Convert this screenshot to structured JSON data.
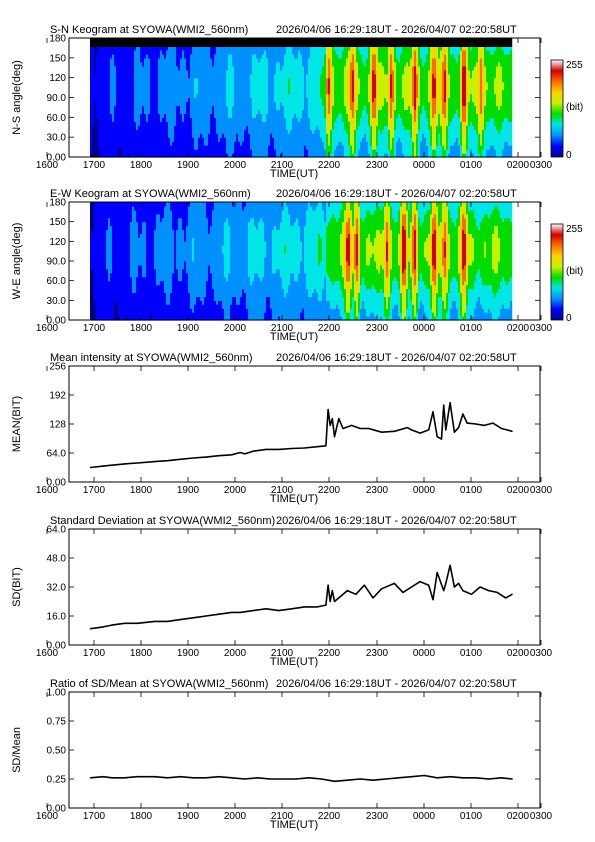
{
  "title_range": "2026/04/06 16:29:18UT - 2026/04/07 02:20:58UT",
  "time_ticks": [
    "1600",
    "1700",
    "1800",
    "1900",
    "2000",
    "2100",
    "2200",
    "2300",
    "0000",
    "0100",
    "0200",
    "0300"
  ],
  "time_label": "TIME(UT)",
  "colorbar": {
    "max_label": "255",
    "unit_label": "(bit)",
    "min_label": "0"
  },
  "keogram_colors": [
    "#00008f",
    "#0000ff",
    "#0090ff",
    "#00e6e6",
    "#00dc00",
    "#c8f000",
    "#ffd000",
    "#ff6a00",
    "#d40000",
    "#ffffff"
  ],
  "chart_data": [
    {
      "type": "heatmap",
      "title": "S-N Keogram at SYOWA(WMI2_560nm)",
      "ylabel": "N-S angle(deg)",
      "yticks": [
        "0.00",
        "30.0",
        "60.0",
        "90.0",
        "120",
        "150",
        "180"
      ],
      "ylim": [
        0,
        180
      ],
      "xlim_hours": [
        16.0,
        27.0
      ],
      "data_start_hours": 16.49,
      "data_end_hours": 26.35,
      "bright_times": [
        22.05,
        22.6,
        23.1,
        23.5,
        0.05,
        0.5,
        0.75,
        1.2,
        1.6
      ],
      "colorbar_range": [
        0,
        255
      ]
    },
    {
      "type": "heatmap",
      "title": "E-W Keogram at SYOWA(WMI2_560nm)",
      "ylabel": "W-E angle(deg)",
      "yticks": [
        "0.00",
        "30.0",
        "60.0",
        "90.0",
        "120",
        "150",
        "180"
      ],
      "ylim": [
        0,
        180
      ],
      "xlim_hours": [
        16.0,
        27.0
      ],
      "data_start_hours": 16.49,
      "data_end_hours": 26.35,
      "bright_times": [
        22.5,
        22.7,
        23.4,
        23.8,
        0.05,
        0.5,
        0.75,
        1.2
      ],
      "colorbar_range": [
        0,
        255
      ]
    },
    {
      "type": "line",
      "title": "Mean intensity at SYOWA(WMI2_560nm)",
      "ylabel": "MEAN(BIT)",
      "yticks": [
        "0.00",
        "64.0",
        "128",
        "192",
        "256"
      ],
      "ylim": [
        0,
        256
      ],
      "xlim_hours": [
        16.0,
        27.0
      ],
      "series": [
        {
          "x_hours": [
            16.5,
            16.8,
            17.0,
            17.3,
            17.6,
            18.0,
            18.3,
            18.6,
            18.9,
            19.2,
            19.5,
            19.8,
            20.0,
            20.1,
            20.3,
            20.6,
            20.9,
            21.2,
            21.5,
            21.8,
            22.0,
            22.05,
            22.1,
            22.15,
            22.2,
            22.3,
            22.4,
            22.6,
            22.8,
            23.0,
            23.3,
            23.6,
            23.9,
            24.0,
            24.2,
            24.4,
            24.5,
            24.6,
            24.7,
            24.75,
            24.8,
            24.9,
            25.0,
            25.1,
            25.2,
            25.3,
            25.5,
            25.7,
            25.9,
            26.1,
            26.35
          ],
          "y": [
            32,
            35,
            37,
            40,
            42,
            45,
            47,
            50,
            53,
            55,
            58,
            60,
            65,
            62,
            68,
            72,
            72,
            74,
            75,
            78,
            80,
            160,
            125,
            140,
            100,
            140,
            118,
            125,
            118,
            118,
            110,
            112,
            120,
            115,
            108,
            115,
            155,
            100,
            95,
            170,
            115,
            175,
            110,
            120,
            150,
            130,
            128,
            125,
            130,
            118,
            112
          ]
        }
      ]
    },
    {
      "type": "line",
      "title": "Standard Deviation at SYOWA(WMI2_560nm)",
      "ylabel": "SD(BIT)",
      "yticks": [
        "0.00",
        "16.0",
        "32.0",
        "48.0",
        "64.0"
      ],
      "ylim": [
        0,
        64
      ],
      "xlim_hours": [
        16.0,
        27.0
      ],
      "series": [
        {
          "x_hours": [
            16.5,
            16.8,
            17.0,
            17.3,
            17.6,
            18.0,
            18.3,
            18.6,
            18.9,
            19.2,
            19.5,
            19.8,
            20.0,
            20.3,
            20.6,
            20.9,
            21.2,
            21.5,
            21.8,
            22.0,
            22.05,
            22.1,
            22.15,
            22.2,
            22.3,
            22.5,
            22.7,
            22.9,
            23.1,
            23.3,
            23.6,
            23.8,
            24.0,
            24.2,
            24.4,
            24.5,
            24.6,
            24.75,
            24.8,
            24.9,
            25.0,
            25.1,
            25.2,
            25.4,
            25.6,
            25.8,
            26.0,
            26.2,
            26.35
          ],
          "y": [
            9,
            10,
            11,
            12,
            12,
            13,
            13,
            14,
            15,
            16,
            17,
            18,
            18,
            19,
            20,
            19,
            20,
            21,
            21,
            22,
            33,
            24,
            30,
            24,
            26,
            30,
            28,
            33,
            26,
            31,
            34,
            29,
            32,
            35,
            33,
            25,
            40,
            30,
            34,
            44,
            32,
            34,
            30,
            28,
            32,
            30,
            29,
            26,
            28
          ]
        }
      ]
    },
    {
      "type": "line",
      "title": "Ratio of SD/Mean at SYOWA(WMI2_560nm)",
      "ylabel": "SD/Mean",
      "yticks": [
        "0.00",
        "0.25",
        "0.50",
        "0.75",
        "1.00"
      ],
      "ylim": [
        0,
        1
      ],
      "xlim_hours": [
        16.0,
        27.0
      ],
      "series": [
        {
          "x_hours": [
            16.5,
            16.8,
            17.0,
            17.3,
            17.6,
            18.0,
            18.3,
            18.6,
            18.9,
            19.2,
            19.5,
            19.8,
            20.1,
            20.4,
            20.7,
            21.0,
            21.3,
            21.6,
            21.9,
            22.2,
            22.5,
            22.8,
            23.1,
            23.4,
            23.7,
            24.0,
            24.3,
            24.6,
            24.9,
            25.2,
            25.5,
            25.8,
            26.1,
            26.35
          ],
          "y": [
            0.26,
            0.27,
            0.26,
            0.26,
            0.27,
            0.27,
            0.26,
            0.27,
            0.26,
            0.26,
            0.27,
            0.26,
            0.25,
            0.26,
            0.25,
            0.25,
            0.25,
            0.26,
            0.25,
            0.23,
            0.24,
            0.25,
            0.24,
            0.25,
            0.26,
            0.27,
            0.28,
            0.26,
            0.27,
            0.26,
            0.26,
            0.25,
            0.26,
            0.25
          ]
        }
      ]
    }
  ]
}
